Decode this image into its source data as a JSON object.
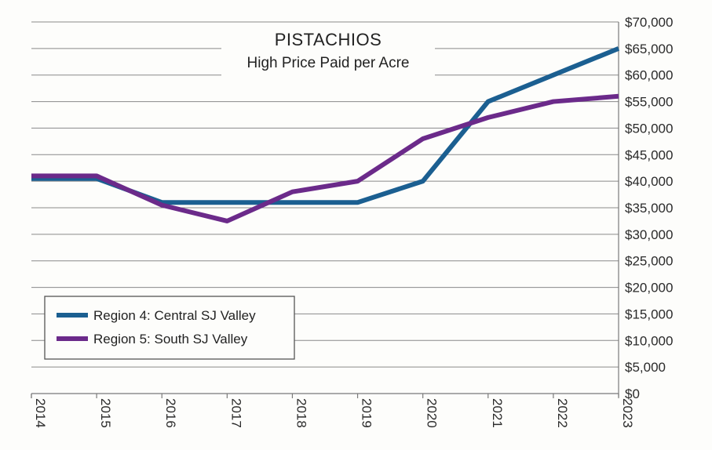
{
  "chart_data": {
    "type": "line",
    "title": "PISTACHIOS",
    "subtitle": "High Price Paid per Acre",
    "xlabel": "",
    "ylabel": "",
    "x": [
      "2014",
      "2015",
      "2016",
      "2017",
      "2018",
      "2019",
      "2020",
      "2021",
      "2022",
      "2023"
    ],
    "ylim": [
      0,
      70000
    ],
    "y_ticks": [
      0,
      5000,
      10000,
      15000,
      20000,
      25000,
      30000,
      35000,
      40000,
      45000,
      50000,
      55000,
      60000,
      65000,
      70000
    ],
    "y_tick_labels": [
      "$0",
      "$5,000",
      "$10,000",
      "$15,000",
      "$20,000",
      "$25,000",
      "$30,000",
      "$35,000",
      "$40,000",
      "$45,000",
      "$50,000",
      "$55,000",
      "$60,000",
      "$65,000",
      "$70,000"
    ],
    "grid": true,
    "y_axis_side": "right",
    "x_tick_rotation": "vertical",
    "legend_position": "bottom-left",
    "series": [
      {
        "name": "Region 4: Central SJ Valley",
        "color": "#1b5f91",
        "values": [
          40500,
          40500,
          36000,
          36000,
          36000,
          36000,
          40000,
          55000,
          60000,
          65000
        ]
      },
      {
        "name": "Region 5: South SJ Valley",
        "color": "#6b2a8a",
        "values": [
          41000,
          41000,
          35500,
          32500,
          38000,
          40000,
          48000,
          52000,
          55000,
          56000
        ]
      }
    ]
  }
}
